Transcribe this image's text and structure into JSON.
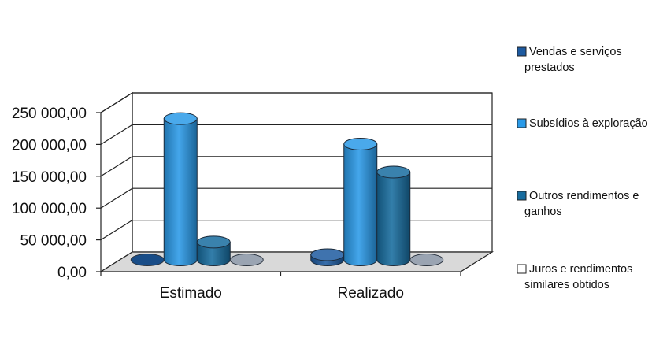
{
  "chart_data": {
    "type": "bar",
    "categories": [
      "Estimado",
      "Realizado"
    ],
    "ylim": [
      0,
      250000
    ],
    "y_ticks": [
      "0,00",
      "50 000,00",
      "100 000,00",
      "150 000,00",
      "200 000,00",
      "250 000,00"
    ],
    "y_tick_values": [
      0,
      50000,
      100000,
      150000,
      200000,
      250000
    ],
    "grid": true,
    "legend_position": "right",
    "series": [
      {
        "name": "Vendas e serviços prestados",
        "values": [
          0,
          8000
        ],
        "color": "#1d5aa0"
      },
      {
        "name": "Subsídios à  exploração",
        "values": [
          222000,
          182000
        ],
        "color": "#2a9ae8"
      },
      {
        "name": "Outros rendimentos e ganhos",
        "values": [
          28000,
          138000
        ],
        "color": "#176c9e"
      },
      {
        "name": "Juros e rendimentos similares obtidos",
        "values": [
          0,
          0
        ],
        "color": "#ffffff"
      }
    ]
  }
}
